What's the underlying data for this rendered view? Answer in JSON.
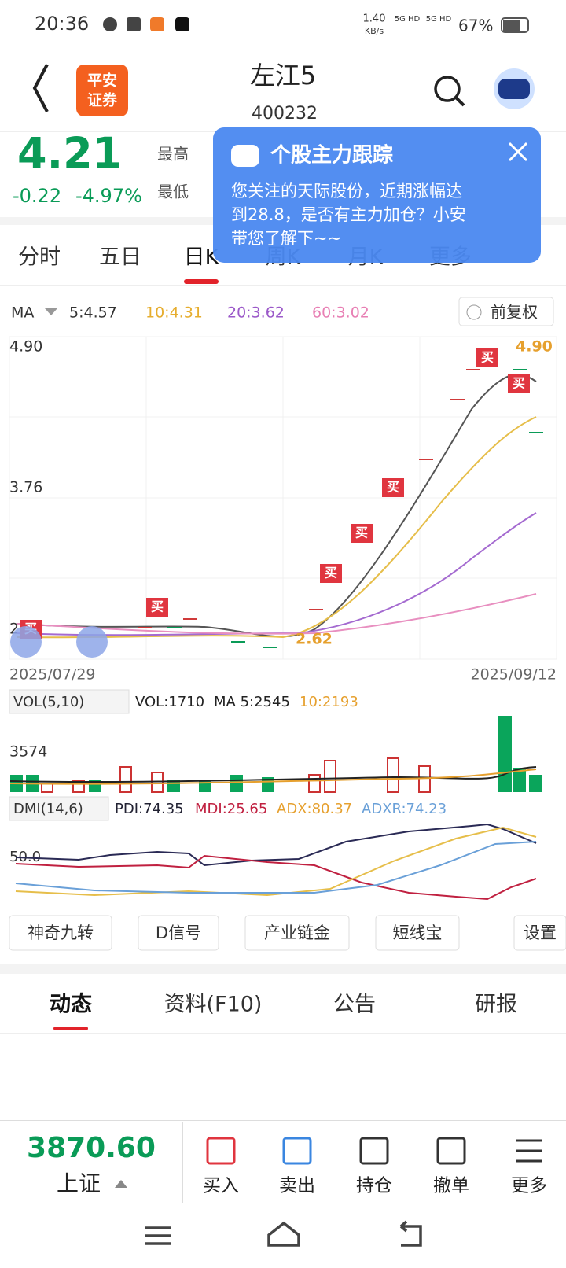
{
  "status_bar": {
    "time": "20:36",
    "speed": "1.40",
    "speed_unit": "KB/s",
    "net1": "5G HD",
    "net2": "5G HD",
    "battery": "67%"
  },
  "header": {
    "logo_line1": "平安",
    "logo_line2": "证券",
    "name": "左江5",
    "code": "400232"
  },
  "quote": {
    "price": "4.21",
    "change": "-0.22",
    "pct": "-4.97%",
    "high_label": "最高",
    "low_label": "最低"
  },
  "popup": {
    "title": "个股主力跟踪",
    "line1": "您关注的天际股份，近期涨幅达",
    "line2": "到28.8，是否有主力加仓？小安",
    "line3": "带您了解下~~"
  },
  "tabs": [
    "分时",
    "五日",
    "日K",
    "周K",
    "月K",
    "更多"
  ],
  "ma_row": {
    "label": "MA",
    "ma5": "5:4.57",
    "ma10": "10:4.31",
    "ma20": "20:3.62",
    "ma60": "60:3.02",
    "adjust": "前复权"
  },
  "kchart": {
    "y_high": "4.90",
    "y_mid": "3.76",
    "y_low": "2",
    "max_label": "4.90",
    "min_label": "2.62",
    "buy_marker": "买",
    "date_start": "2025/07/29",
    "date_end": "2025/09/12"
  },
  "vol": {
    "label": "VOL(5,10)",
    "vol": "VOL:1710",
    "ma5": "MA 5:2545",
    "ma10": "10:2193",
    "y_label": "3574"
  },
  "dmi": {
    "label": "DMI(14,6)",
    "pdi": "PDI:74.35",
    "mdi": "MDI:25.65",
    "adx": "ADX:80.37",
    "adxr": "ADXR:74.23",
    "y_label": "50.0"
  },
  "tools": [
    "神奇九转",
    "D信号",
    "产业链金",
    "短线宝",
    "设置"
  ],
  "info_tabs": [
    "动态",
    "资料(F10)",
    "公告",
    "研报"
  ],
  "bottom": {
    "index_value": "3870.60",
    "index_name": "上证",
    "actions": [
      "买入",
      "卖出",
      "持仓",
      "撤单",
      "更多"
    ]
  }
}
